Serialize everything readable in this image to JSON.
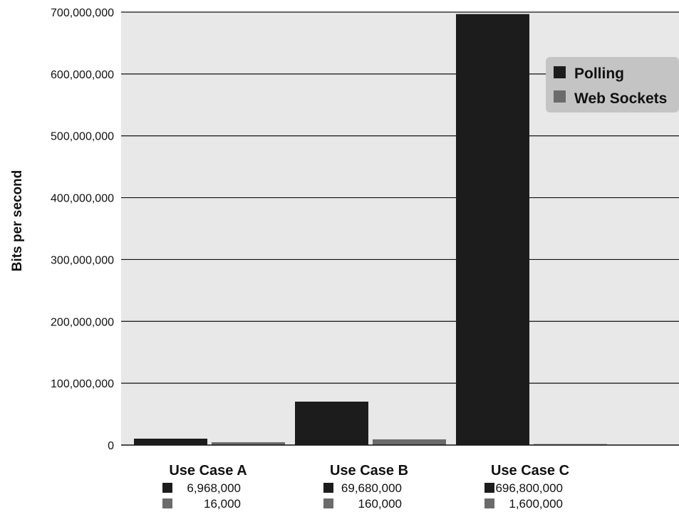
{
  "chart_data": {
    "type": "bar",
    "categories": [
      "Use Case A",
      "Use Case B",
      "Use Case C"
    ],
    "series": [
      {
        "name": "Polling",
        "values": [
          6968000,
          69680000,
          696800000
        ],
        "color": "#1c1c1c",
        "data_labels": [
          "6,968,000",
          "69,680,000",
          "696,800,000"
        ]
      },
      {
        "name": "Web Sockets",
        "values": [
          16000,
          160000,
          1600000
        ],
        "color": "#6b6b6b",
        "data_labels": [
          "16,000",
          "160,000",
          "1,600,000"
        ]
      }
    ],
    "ylabel": "Bits per second",
    "ylim": [
      0,
      700000000
    ],
    "yticks": [
      0,
      100000000,
      200000000,
      300000000,
      400000000,
      500000000,
      600000000,
      700000000
    ],
    "ytick_labels": [
      "0",
      "100,000,000",
      "200,000,000",
      "300,000,000",
      "400,000,000",
      "500,000,000",
      "600,000,000",
      "700,000,000"
    ],
    "grid": true,
    "legend_position": "top-right",
    "plot_background": "#e8e8e8",
    "legend_background": "#c4c4c4"
  }
}
